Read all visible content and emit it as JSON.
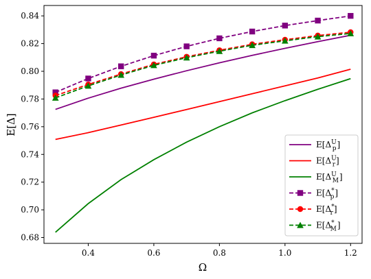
{
  "chart_data": {
    "type": "line",
    "title": "",
    "xlabel": "Ω",
    "ylabel": "E[Δ]",
    "xlim": [
      0.265,
      1.235
    ],
    "ylim": [
      0.6758,
      0.8475
    ],
    "xticks": [
      0.4,
      0.6,
      0.8,
      1.0,
      1.2
    ],
    "xtick_labels": [
      "0.4",
      "0.6",
      "0.8",
      "1.0",
      "1.2"
    ],
    "yticks": [
      0.68,
      0.7,
      0.72,
      0.74,
      0.76,
      0.78,
      0.8,
      0.82,
      0.84
    ],
    "ytick_labels": [
      "0.68",
      "0.70",
      "0.72",
      "0.74",
      "0.76",
      "0.78",
      "0.80",
      "0.82",
      "0.84"
    ],
    "grid": false,
    "legend_position": "lower-right",
    "x": [
      0.3,
      0.4,
      0.5,
      0.6,
      0.7,
      0.8,
      0.9,
      1.0,
      1.1,
      1.2
    ],
    "series": [
      {
        "name": "E[Δ_p^U]",
        "label_base": "E[Δ",
        "label_sub": "p",
        "label_sup": "U",
        "color": "#800080",
        "dashed": false,
        "marker": "none",
        "values": [
          0.7725,
          0.7806,
          0.7878,
          0.7943,
          0.8004,
          0.8061,
          0.8115,
          0.8166,
          0.8214,
          0.826
        ]
      },
      {
        "name": "E[Δ_r^U]",
        "label_base": "E[Δ",
        "label_sub": "r",
        "label_sup": "U",
        "color": "#ff0000",
        "dashed": false,
        "marker": "none",
        "values": [
          0.7508,
          0.7557,
          0.7612,
          0.7668,
          0.7724,
          0.7781,
          0.7838,
          0.7895,
          0.7952,
          0.8015
        ]
      },
      {
        "name": "E[Δ_M^U]",
        "label_base": "E[Δ",
        "label_sub": "M",
        "label_sup": "U",
        "color": "#008000",
        "dashed": false,
        "marker": "none",
        "values": [
          0.6838,
          0.7045,
          0.7218,
          0.7362,
          0.7489,
          0.76,
          0.77,
          0.7788,
          0.787,
          0.7947
        ]
      },
      {
        "name": "E[Δ_p^*]",
        "label_base": "E[Δ",
        "label_sub": "p",
        "label_sup": "*",
        "color": "#800080",
        "dashed": true,
        "marker": "square",
        "values": [
          0.7848,
          0.7948,
          0.8036,
          0.8113,
          0.818,
          0.8238,
          0.8287,
          0.833,
          0.8366,
          0.84
        ]
      },
      {
        "name": "E[Δ_r^*]",
        "label_base": "E[Δ",
        "label_sub": "r",
        "label_sup": "*",
        "color": "#ff0000",
        "dashed": true,
        "marker": "circle",
        "values": [
          0.7825,
          0.7905,
          0.798,
          0.805,
          0.8105,
          0.8152,
          0.8195,
          0.8228,
          0.8258,
          0.8282
        ]
      },
      {
        "name": "E[Δ_M^*]",
        "label_base": "E[Δ",
        "label_sub": "M",
        "label_sup": "*",
        "color": "#008000",
        "dashed": true,
        "marker": "triangle",
        "values": [
          0.7808,
          0.7895,
          0.7973,
          0.8043,
          0.8098,
          0.8145,
          0.8188,
          0.822,
          0.825,
          0.8273
        ]
      }
    ]
  }
}
